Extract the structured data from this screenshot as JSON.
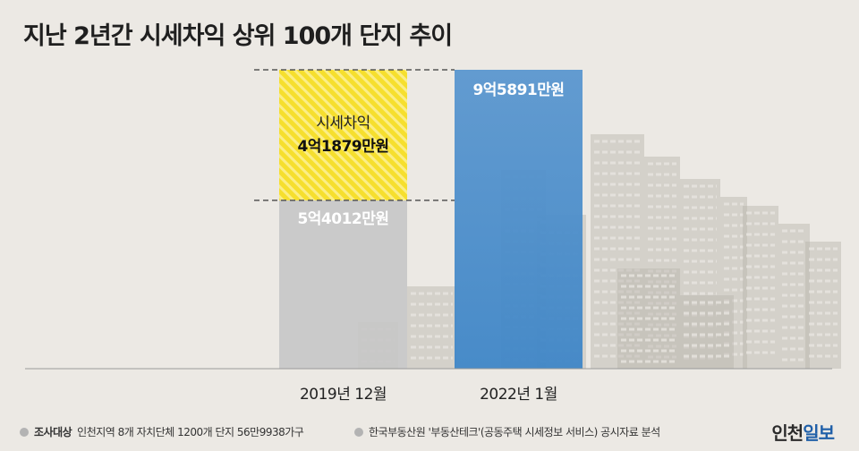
{
  "title": "지난 2년간 시세차익 상위 100개 단지 추이",
  "chart_data": {
    "type": "bar",
    "unit": "만원",
    "categories": [
      "2019년 12월",
      "2022년 1월"
    ],
    "values": [
      54012,
      95891
    ],
    "value_labels": [
      "5억4012만원",
      "9억5891만원"
    ],
    "difference": {
      "value": 41879,
      "label_top": "시세차익",
      "label_value": "4억1879만원"
    },
    "colors": {
      "bar_2019": "#c7c7c7",
      "bar_2022": "#5b97cf",
      "difference": "#f6df2e",
      "diff_stripe": "#ffffff",
      "label_2019": "#ffffff",
      "label_2022": "#ffffff",
      "guide": "#555555"
    },
    "ylim": [
      0,
      100000
    ],
    "grid": false
  },
  "footer": {
    "survey_label": "조사대상",
    "survey_text": "인천지역 8개 자치단체 1200개 단지 56만9938가구",
    "source_text": "한국부동산원 '부동산테크'(공동주택 시세정보 서비스) 공시자료 분석"
  },
  "logo": {
    "part1": "인천",
    "part2": "일보"
  }
}
